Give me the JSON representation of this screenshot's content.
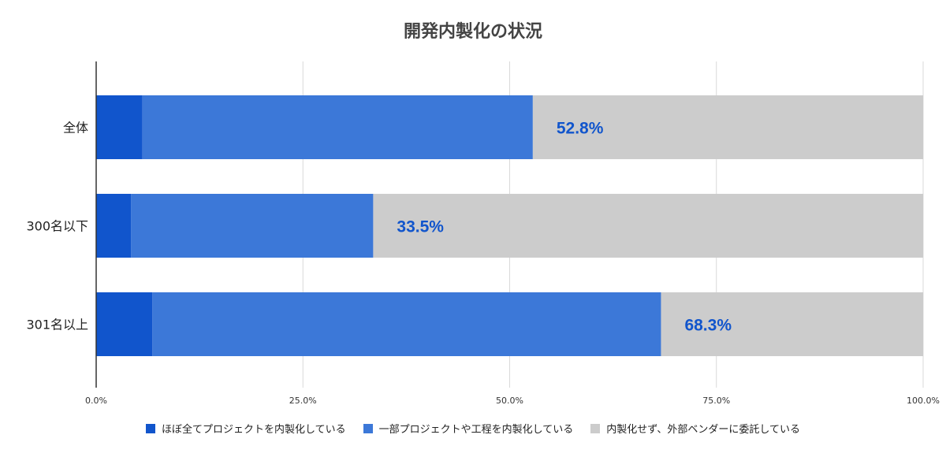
{
  "chart_data": {
    "type": "bar",
    "orientation": "horizontal",
    "stacked": true,
    "title": "開発内製化の状況",
    "categories": [
      "全体",
      "300名以下",
      "301名以上"
    ],
    "series": [
      {
        "name": "ほぼ全てプロジェクトを内製化している",
        "color": "#1155cc",
        "values": [
          5.6,
          4.2,
          6.8
        ]
      },
      {
        "name": "一部プロジェクトや工程を内製化している",
        "color": "#3c78d8",
        "values": [
          47.2,
          29.3,
          61.5
        ]
      },
      {
        "name": "内製化せず、外部ベンダーに委託している",
        "color": "#cccccc",
        "values": [
          47.2,
          66.5,
          31.7
        ]
      }
    ],
    "data_labels": [
      "52.8%",
      "33.5%",
      "68.3%"
    ],
    "data_label_color": "#1155cc",
    "x_ticks": [
      0,
      25,
      50,
      75,
      100
    ],
    "x_tick_labels": [
      "0.0%",
      "25.0%",
      "50.0%",
      "75.0%",
      "100.0%"
    ],
    "xlim": [
      0,
      100
    ],
    "grid": true,
    "legend_position": "bottom"
  }
}
